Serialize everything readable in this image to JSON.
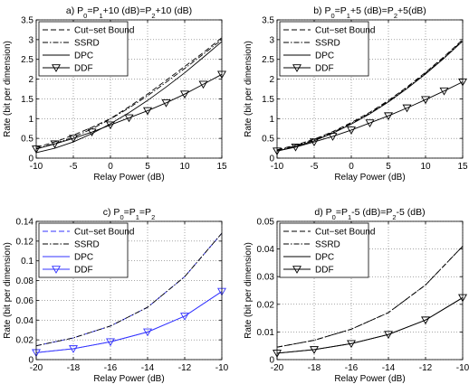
{
  "chart_data": [
    {
      "type": "line",
      "title_parts": [
        "a) P",
        "0",
        "=P",
        "1",
        "+10 (dB)=P",
        "2",
        "+10 (dB)"
      ],
      "xlabel": "Relay Power (dB)",
      "ylabel": "Rate (bit per dimension)",
      "xlim": [
        -10,
        15
      ],
      "ylim": [
        0,
        3.5
      ],
      "xticks": [
        "-10",
        "-5",
        "0",
        "5",
        "10",
        "15"
      ],
      "yticks": [
        "0",
        "0.5",
        "1",
        "1.5",
        "2",
        "2.5",
        "3",
        "3.5"
      ],
      "grid": true,
      "legend_placement": "top-left",
      "x": [
        -10,
        -7.5,
        -5,
        -2.5,
        0,
        2.5,
        5,
        7.5,
        10,
        12.5,
        15
      ],
      "series": [
        {
          "name": "Cut−set Bound",
          "style": "dashed",
          "color": "#000000",
          "marker": "none",
          "values": [
            0.27,
            0.41,
            0.58,
            0.78,
            1.0,
            1.3,
            1.62,
            1.97,
            2.32,
            2.67,
            3.05
          ]
        },
        {
          "name": "SSRD",
          "style": "dashdot",
          "color": "#000000",
          "marker": "none",
          "values": [
            0.24,
            0.37,
            0.53,
            0.74,
            0.99,
            1.27,
            1.58,
            1.92,
            2.27,
            2.63,
            3.0
          ]
        },
        {
          "name": "DPC",
          "style": "solid",
          "color": "#000000",
          "marker": "none",
          "values": [
            0.14,
            0.25,
            0.41,
            0.62,
            0.87,
            1.15,
            1.46,
            1.8,
            2.16,
            2.55,
            2.95
          ]
        },
        {
          "name": "DDF",
          "style": "solid",
          "color": "#000000",
          "marker": "triangle-down",
          "values": [
            0.23,
            0.36,
            0.5,
            0.66,
            0.84,
            1.02,
            1.2,
            1.4,
            1.62,
            1.87,
            2.12
          ]
        }
      ]
    },
    {
      "type": "line",
      "title_parts": [
        "b) P",
        "0",
        "=P",
        "1",
        "+5 (dB)=P",
        "2",
        "+5(dB)"
      ],
      "xlabel": "Relay Power (dB)",
      "ylabel": "Rate (bit per dimension)",
      "xlim": [
        -10,
        15
      ],
      "ylim": [
        0,
        3.5
      ],
      "xticks": [
        "-10",
        "-5",
        "0",
        "5",
        "10",
        "15"
      ],
      "yticks": [
        "0",
        "0.5",
        "1",
        "1.5",
        "2",
        "2.5",
        "3",
        "3.5"
      ],
      "grid": true,
      "legend_placement": "top-left",
      "x": [
        -10,
        -7.5,
        -5,
        -2.5,
        0,
        2.5,
        5,
        7.5,
        10,
        12.5,
        15
      ],
      "series": [
        {
          "name": "Cut−set Bound",
          "style": "dashed",
          "color": "#000000",
          "marker": "none",
          "values": [
            0.21,
            0.33,
            0.48,
            0.67,
            0.9,
            1.16,
            1.46,
            1.8,
            2.17,
            2.57,
            3.0
          ]
        },
        {
          "name": "SSRD",
          "style": "dashdot",
          "color": "#000000",
          "marker": "none",
          "values": [
            0.2,
            0.31,
            0.46,
            0.65,
            0.88,
            1.14,
            1.44,
            1.78,
            2.15,
            2.55,
            2.98
          ]
        },
        {
          "name": "DPC",
          "style": "solid",
          "color": "#000000",
          "marker": "none",
          "values": [
            0.18,
            0.29,
            0.44,
            0.63,
            0.86,
            1.12,
            1.42,
            1.76,
            2.13,
            2.53,
            2.96
          ]
        },
        {
          "name": "DDF",
          "style": "solid",
          "color": "#000000",
          "marker": "triangle-down",
          "values": [
            0.18,
            0.28,
            0.41,
            0.55,
            0.71,
            0.89,
            1.07,
            1.27,
            1.48,
            1.7,
            1.93
          ]
        }
      ]
    },
    {
      "type": "line",
      "title_parts": [
        "c) P",
        "0",
        "=P",
        "1",
        "=P",
        "2",
        ""
      ],
      "xlabel": "Relay Power (dB)",
      "ylabel": "Rate (bit per dimension)",
      "xlim": [
        -20,
        -10
      ],
      "ylim": [
        0,
        0.14
      ],
      "xticks": [
        "-20",
        "-18",
        "-16",
        "-14",
        "-12",
        "-10"
      ],
      "yticks": [
        "0",
        "0.02",
        "0.04",
        "0.06",
        "0.08",
        "0.1",
        "0.12",
        "0.14"
      ],
      "grid": true,
      "legend_placement": "top-left",
      "x": [
        -20,
        -18,
        -16,
        -14,
        -12,
        -10
      ],
      "series": [
        {
          "name": "Cut−set Bound",
          "style": "dashed",
          "color": "#3333ff",
          "marker": "none",
          "values": [
            0.014,
            0.022,
            0.034,
            0.053,
            0.084,
            0.128
          ]
        },
        {
          "name": "SSRD",
          "style": "dashdot",
          "color": "#000000",
          "marker": "none",
          "values": [
            0.014,
            0.022,
            0.034,
            0.053,
            0.084,
            0.128
          ]
        },
        {
          "name": "DPC",
          "style": "solid",
          "color": "#3333ff",
          "marker": "none",
          "values": [
            0.007,
            0.011,
            0.018,
            0.028,
            0.044,
            0.069
          ]
        },
        {
          "name": "DDF",
          "style": "solid",
          "color": "#3333ff",
          "marker": "triangle-down",
          "values": [
            0.007,
            0.011,
            0.018,
            0.028,
            0.044,
            0.069
          ]
        }
      ]
    },
    {
      "type": "line",
      "title_parts": [
        "d) P",
        "0",
        "=P",
        "1",
        "-5 (dB)=P",
        "2",
        "-5 (dB)"
      ],
      "xlabel": "Relay Power (dB)",
      "ylabel": "Rate (bit per dimension)",
      "xlim": [
        -20,
        -10
      ],
      "ylim": [
        0,
        0.05
      ],
      "xticks": [
        "-20",
        "-18",
        "-16",
        "-14",
        "-12",
        "-10"
      ],
      "yticks": [
        "0",
        "0.01",
        "0.02",
        "0.03",
        "0.04",
        "0.05"
      ],
      "grid": true,
      "legend_placement": "top-left",
      "x": [
        -20,
        -18,
        -16,
        -14,
        -12,
        -10
      ],
      "series": [
        {
          "name": "Cut−set Bound",
          "style": "dashed",
          "color": "#000000",
          "marker": "none",
          "values": [
            0.0045,
            0.007,
            0.011,
            0.017,
            0.027,
            0.041
          ]
        },
        {
          "name": "SSRD",
          "style": "dashdot",
          "color": "#000000",
          "marker": "none",
          "values": [
            0.0045,
            0.007,
            0.011,
            0.017,
            0.027,
            0.041
          ]
        },
        {
          "name": "DPC",
          "style": "solid",
          "color": "#000000",
          "marker": "none",
          "values": [
            0.0023,
            0.0036,
            0.0058,
            0.0091,
            0.0143,
            0.0224
          ]
        },
        {
          "name": "DDF",
          "style": "solid",
          "color": "#000000",
          "marker": "triangle-down",
          "values": [
            0.0023,
            0.0036,
            0.0058,
            0.0091,
            0.0143,
            0.0224
          ]
        }
      ]
    }
  ]
}
